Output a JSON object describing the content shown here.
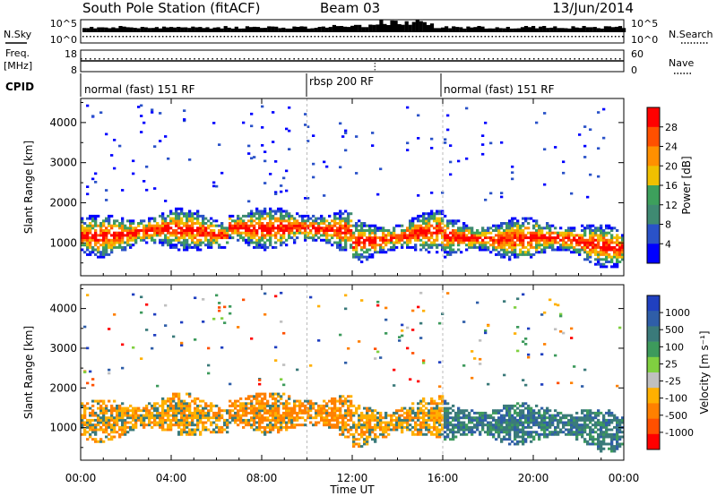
{
  "header": {
    "station": "South Pole Station (fitACF)",
    "beam": "Beam 03",
    "date": "13/Jun/2014"
  },
  "strips": {
    "nsky_label": "N.Sky",
    "nsearch_label": "N.Search",
    "freq_label_1": "Freq.",
    "freq_label_2": "[MHz]",
    "nave_label": "Nave",
    "left_ticks_noise": [
      "10^5",
      "10^0"
    ],
    "right_ticks_noise": [
      "10^5",
      "10^0"
    ],
    "left_ticks_freq": [
      "18",
      "8"
    ],
    "right_ticks_freq": [
      "60",
      "0"
    ]
  },
  "cpid": {
    "label": "CPID",
    "segments": [
      {
        "name": "normal (fast) 151 RF",
        "start_hour": 0
      },
      {
        "name": "rbsp 200 RF",
        "start_hour": 10
      },
      {
        "name": "normal (fast) 151 RF",
        "start_hour": 16
      }
    ]
  },
  "axes": {
    "xlabel": "Time UT",
    "ylabel": "Slant Range [km]",
    "x_ticks": [
      "00:00",
      "04:00",
      "08:00",
      "12:00",
      "16:00",
      "20:00",
      "00:00"
    ],
    "x_range_hours": [
      0,
      24
    ],
    "y_ticks": [
      "1000",
      "2000",
      "3000",
      "4000"
    ],
    "y_tick_values": [
      1000,
      2000,
      3000,
      4000
    ],
    "y_range_km": [
      180,
      4600
    ]
  },
  "chart_data": [
    {
      "type": "heatmap",
      "panel": "power",
      "colorbar_label": "Power [dB]",
      "colorbar_ticks": [
        "4",
        "8",
        "12",
        "16",
        "20",
        "24",
        "28"
      ],
      "colorbar_range": [
        0,
        30
      ],
      "colors": [
        "#0000ff",
        "#2a52c8",
        "#3f8a72",
        "#3da05c",
        "#f0c000",
        "#ff9000",
        "#ff5000",
        "#ff0000"
      ],
      "main_band_km": [
        700,
        1800
      ],
      "far_scatter_km": [
        2000,
        4400
      ]
    },
    {
      "type": "heatmap",
      "panel": "velocity",
      "colorbar_label": "Velocity [m s⁻¹]",
      "colorbar_ticks": [
        "1000",
        "500",
        "100",
        "25",
        "-25",
        "-100",
        "-500",
        "-1000"
      ],
      "colorbar_range": [
        -1000,
        1000
      ],
      "colors": [
        "#2040c0",
        "#2f5ea8",
        "#3a7a7a",
        "#3d9a5c",
        "#80d040",
        "#c0c0c0",
        "#ffb000",
        "#ff8000",
        "#ff5000",
        "#ff0000"
      ],
      "main_band_km": [
        700,
        1800
      ],
      "far_scatter_km": [
        2000,
        4400
      ]
    }
  ]
}
